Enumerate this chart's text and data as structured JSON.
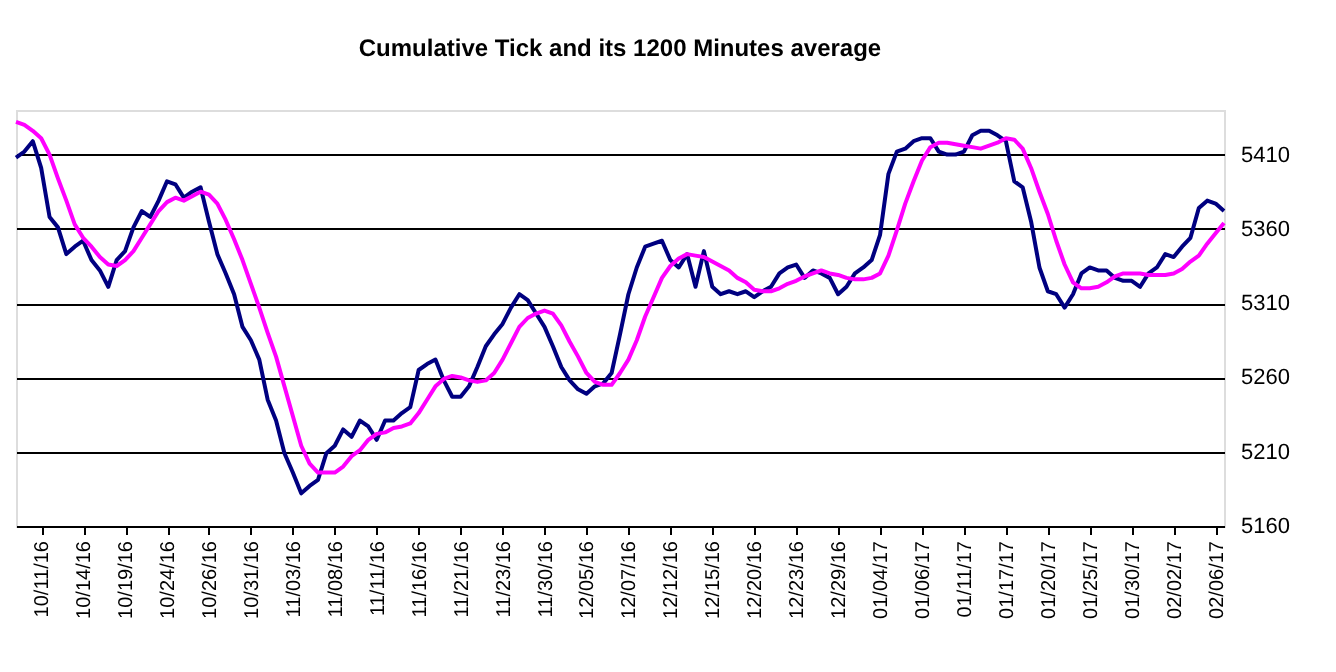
{
  "chart_data": {
    "type": "line",
    "title": "Cumulative Tick and its 1200 Minutes average",
    "categories": [
      null,
      null,
      null,
      "10/11/16",
      null,
      null,
      null,
      null,
      "10/14/16",
      null,
      null,
      null,
      null,
      "10/19/16",
      null,
      null,
      null,
      null,
      "10/24/16",
      null,
      null,
      null,
      null,
      "10/26/16",
      null,
      null,
      null,
      null,
      "10/31/16",
      null,
      null,
      null,
      null,
      "11/03/16",
      null,
      null,
      null,
      null,
      "11/08/16",
      null,
      null,
      null,
      null,
      "11/11/16",
      null,
      null,
      null,
      null,
      "11/16/16",
      null,
      null,
      null,
      null,
      "11/21/16",
      null,
      null,
      null,
      null,
      "11/23/16",
      null,
      null,
      null,
      null,
      "11/30/16",
      null,
      null,
      null,
      null,
      "12/05/16",
      null,
      null,
      null,
      null,
      "12/07/16",
      null,
      null,
      null,
      null,
      "12/12/16",
      null,
      null,
      null,
      null,
      "12/15/16",
      null,
      null,
      null,
      null,
      "12/20/16",
      null,
      null,
      null,
      null,
      "12/23/16",
      null,
      null,
      null,
      null,
      "12/29/16",
      null,
      null,
      null,
      null,
      "01/04/17",
      null,
      null,
      null,
      null,
      "01/06/17",
      null,
      null,
      null,
      null,
      "01/11/17",
      null,
      null,
      null,
      null,
      "01/17/17",
      null,
      null,
      null,
      null,
      "01/20/17",
      null,
      null,
      null,
      null,
      "01/25/17",
      null,
      null,
      null,
      null,
      "01/30/17",
      null,
      null,
      null,
      null,
      "02/02/17",
      null,
      null,
      null,
      null,
      "02/06/17",
      null
    ],
    "series": [
      {
        "color": "#000080",
        "values": [
          5408,
          5412,
          5419,
          5401,
          5368,
          5361,
          5343,
          5348,
          5352,
          5339,
          5332,
          5321,
          5339,
          5345,
          5361,
          5372,
          5368,
          5379,
          5392,
          5390,
          5381,
          5385,
          5388,
          5365,
          5343,
          5330,
          5316,
          5294,
          5285,
          5272,
          5245,
          5231,
          5209,
          5196,
          5182,
          5187,
          5191,
          5209,
          5214,
          5225,
          5220,
          5231,
          5227,
          5218,
          5231,
          5231,
          5236,
          5240,
          5265,
          5269,
          5272,
          5258,
          5247,
          5247,
          5254,
          5267,
          5281,
          5289,
          5296,
          5307,
          5316,
          5312,
          5303,
          5294,
          5281,
          5267,
          5258,
          5252,
          5249,
          5254,
          5256,
          5263,
          5289,
          5316,
          5334,
          5348,
          5350,
          5352,
          5339,
          5334,
          5343,
          5321,
          5345,
          5321,
          5316,
          5318,
          5316,
          5318,
          5314,
          5318,
          5321,
          5330,
          5334,
          5336,
          5327,
          5332,
          5330,
          5327,
          5316,
          5321,
          5330,
          5334,
          5339,
          5356,
          5397,
          5412,
          5414,
          5419,
          5421,
          5421,
          5412,
          5410,
          5410,
          5412,
          5423,
          5426,
          5426,
          5423,
          5419,
          5392,
          5388,
          5365,
          5334,
          5318,
          5316,
          5307,
          5316,
          5330,
          5334,
          5332,
          5332,
          5327,
          5325,
          5325,
          5321,
          5330,
          5334,
          5343,
          5341,
          5348,
          5354,
          5374,
          5379,
          5377,
          5372
        ]
      },
      {
        "color": "#ff00ff",
        "values": [
          5432,
          5430,
          5426,
          5421,
          5410,
          5394,
          5379,
          5363,
          5354,
          5348,
          5341,
          5336,
          5335,
          5339,
          5345,
          5354,
          5363,
          5372,
          5378,
          5381,
          5379,
          5382,
          5385,
          5383,
          5377,
          5366,
          5353,
          5339,
          5323,
          5307,
          5290,
          5274,
          5254,
          5234,
          5214,
          5202,
          5196,
          5196,
          5196,
          5200,
          5207,
          5211,
          5218,
          5222,
          5223,
          5226,
          5227,
          5229,
          5236,
          5245,
          5254,
          5259,
          5261,
          5260,
          5258,
          5257,
          5258,
          5263,
          5272,
          5283,
          5294,
          5300,
          5303,
          5305,
          5303,
          5295,
          5284,
          5274,
          5263,
          5257,
          5255,
          5255,
          5263,
          5272,
          5285,
          5301,
          5314,
          5327,
          5335,
          5340,
          5343,
          5342,
          5341,
          5338,
          5335,
          5332,
          5327,
          5324,
          5319,
          5318,
          5318,
          5320,
          5323,
          5325,
          5328,
          5330,
          5332,
          5330,
          5329,
          5327,
          5326,
          5326,
          5327,
          5330,
          5342,
          5359,
          5377,
          5392,
          5406,
          5415,
          5418,
          5418,
          5417,
          5416,
          5415,
          5414,
          5416,
          5418,
          5421,
          5420,
          5414,
          5401,
          5385,
          5370,
          5352,
          5336,
          5324,
          5320,
          5320,
          5321,
          5324,
          5328,
          5330,
          5330,
          5330,
          5329,
          5329,
          5329,
          5330,
          5333,
          5338,
          5342,
          5350,
          5357,
          5364
        ]
      }
    ],
    "ylim": [
      5160,
      5440
    ],
    "yticks": [
      5160,
      5210,
      5260,
      5310,
      5360,
      5410
    ],
    "grid": "y",
    "legend": false
  }
}
